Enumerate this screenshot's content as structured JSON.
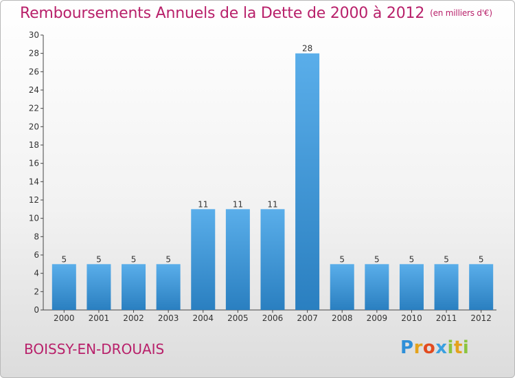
{
  "header": {
    "title": "Remboursements Annuels de la Dette de 2000 à 2012",
    "unit": "(en milliers d'€)"
  },
  "footer": {
    "commune": "BOISSY-EN-DROUAIS",
    "logo": "Proxiti"
  },
  "chart_data": {
    "type": "bar",
    "title": "Remboursements Annuels de la Dette de 2000 à 2012",
    "subtitle": "(en milliers d'€)",
    "xlabel": "",
    "ylabel": "",
    "categories": [
      "2000",
      "2001",
      "2002",
      "2003",
      "2004",
      "2005",
      "2006",
      "2007",
      "2008",
      "2009",
      "2010",
      "2011",
      "2012"
    ],
    "values": [
      5,
      5,
      5,
      5,
      11,
      11,
      11,
      28,
      5,
      5,
      5,
      5,
      5
    ],
    "data_labels": [
      "5",
      "5",
      "5",
      "5",
      "11",
      "11",
      "11",
      "28",
      "5",
      "5",
      "5",
      "5",
      "5"
    ],
    "ylim": [
      0,
      30
    ],
    "yticks": [
      0,
      2,
      4,
      6,
      8,
      10,
      12,
      14,
      16,
      18,
      20,
      22,
      24,
      26,
      28,
      30
    ],
    "grid": false,
    "legend": "none",
    "colors": {
      "bar_top": "#5aaeea",
      "bar_bottom": "#2a7fc0",
      "text": "#b8206a"
    }
  }
}
